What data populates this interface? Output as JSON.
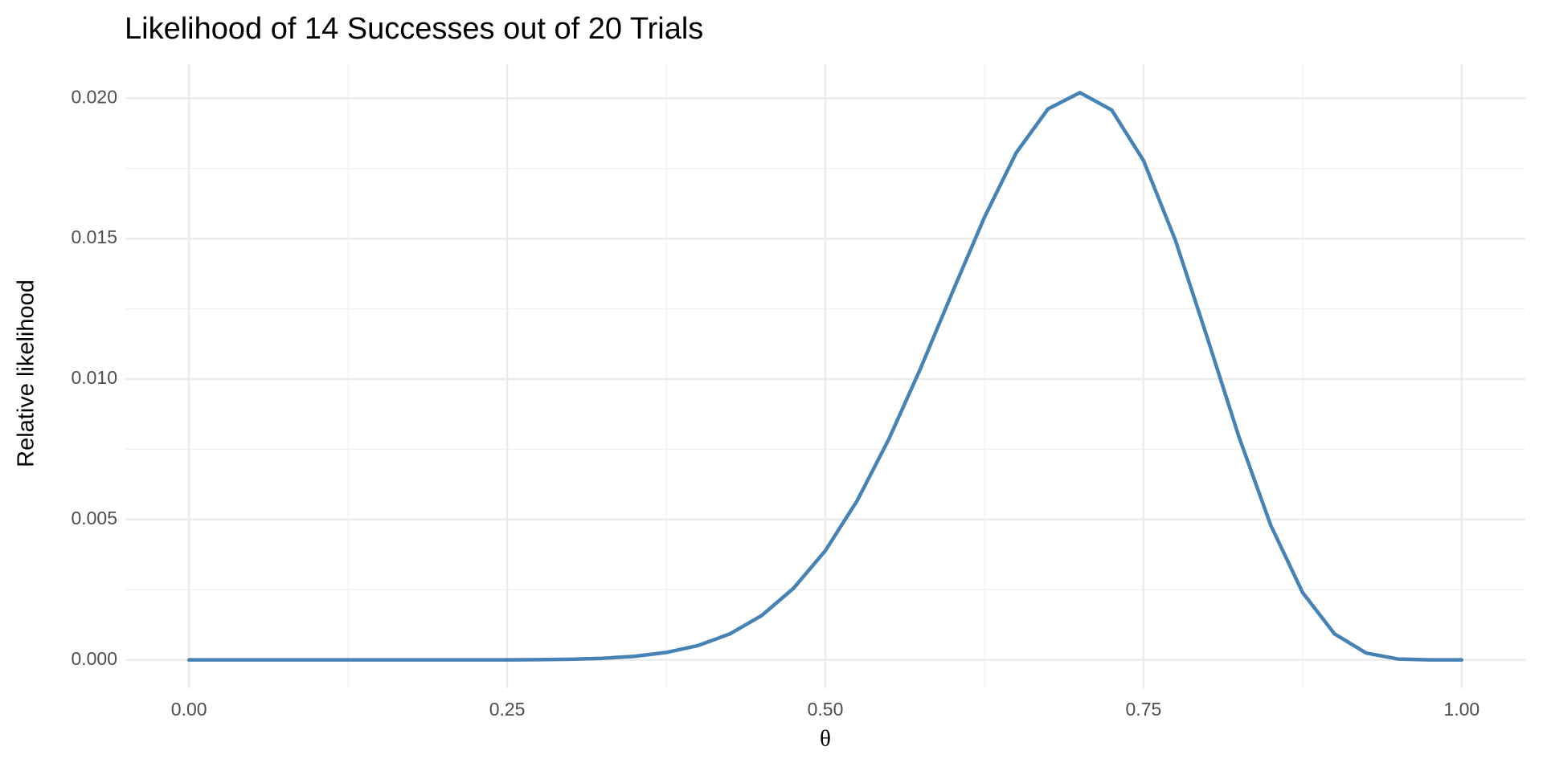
{
  "chart_data": {
    "type": "line",
    "title": "Likelihood of 14 Successes out of 20 Trials",
    "x_label": "θ",
    "y_label": "Relative likelihood",
    "x": [
      0,
      0.025,
      0.05,
      0.075,
      0.1,
      0.125,
      0.15,
      0.175,
      0.2,
      0.225,
      0.25,
      0.275,
      0.3,
      0.325,
      0.35,
      0.375,
      0.4,
      0.425,
      0.45,
      0.475,
      0.5,
      0.525,
      0.55,
      0.575,
      0.6,
      0.625,
      0.65,
      0.675,
      0.7,
      0.725,
      0.75,
      0.775,
      0.8,
      0.825,
      0.85,
      0.875,
      0.9,
      0.925,
      0.95,
      0.975,
      1
    ],
    "series": [
      {
        "name": "likelihood",
        "color": "#4682b4",
        "values": [
          0,
          0,
          0,
          0,
          0,
          0,
          0,
          0,
          0,
          0,
          2.7e-06,
          8.4e-06,
          2.3e-05,
          5.7e-05,
          0.000128,
          0.000265,
          0.000512,
          0.000926,
          0.00158,
          0.00255,
          0.00389,
          0.00567,
          0.00787,
          0.0104,
          0.01311,
          0.01576,
          0.01806,
          0.01962,
          0.0202,
          0.01958,
          0.01778,
          0.01495,
          0.01149,
          0.00794,
          0.00479,
          0.0024,
          0.00093,
          0.000244,
          3.1e-05,
          7e-07,
          0
        ]
      }
    ],
    "xlim": [
      -0.05,
      1.05
    ],
    "ylim": [
      -0.00101,
      0.02121
    ],
    "xticks": [
      {
        "value": 0,
        "label": "0.00"
      },
      0.25,
      {
        "value": 0.5,
        "label": "0.50"
      },
      0.75,
      {
        "value": 1,
        "label": "1.00"
      }
    ],
    "yticks": [
      {
        "value": 0,
        "label": "0.000"
      },
      0.005,
      {
        "value": 0.01,
        "label": "0.010"
      },
      0.015,
      {
        "value": 0.02,
        "label": "0.020"
      }
    ],
    "x_minor_grid": [
      0.125,
      0.375,
      0.625,
      0.875
    ],
    "y_minor_grid": [
      0.0025,
      0.0075,
      0.0125,
      0.0175
    ],
    "grid": true
  }
}
